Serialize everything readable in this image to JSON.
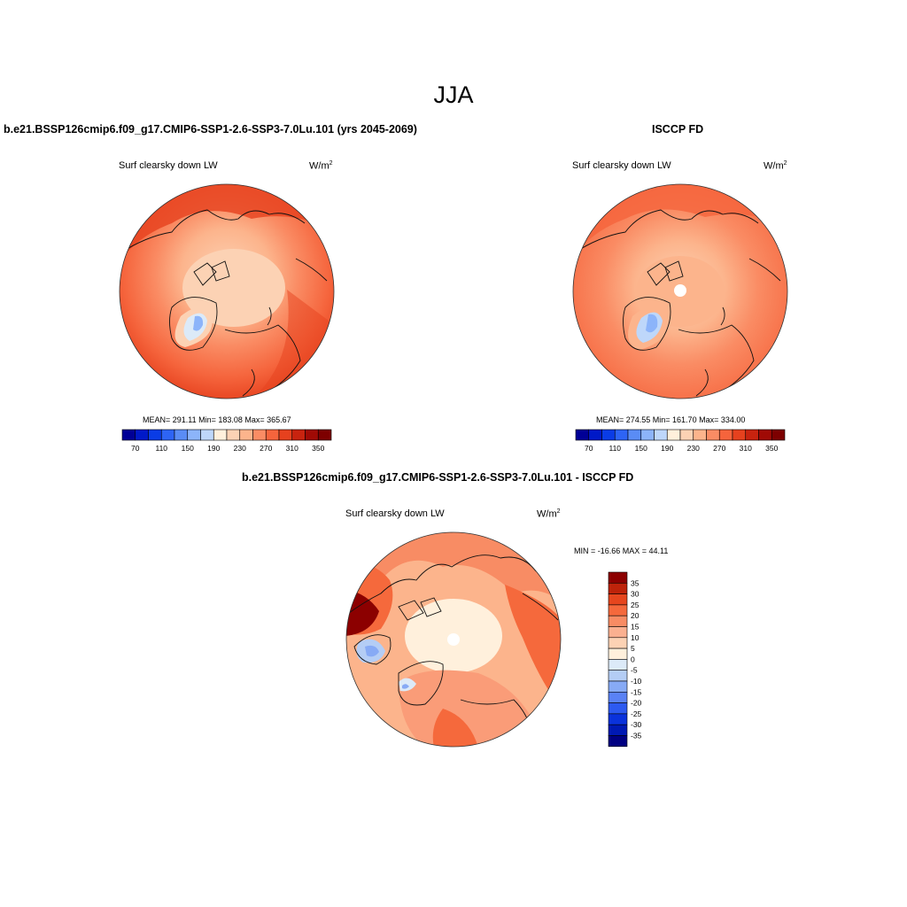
{
  "title": "JJA",
  "panels": [
    {
      "id": "model",
      "case_title": "b.e21.BSSP126cmip6.f09_g17.CMIP6-SSP1-2.6-SSP3-7.0Lu.101 (yrs 2045-2069)",
      "variable": "Surf clearsky down LW",
      "units": "W/m",
      "units_sup": "2",
      "stats": "MEAN= 291.11  Min= 183.08  Max= 365.67"
    },
    {
      "id": "obs",
      "case_title": "ISCCP FD",
      "variable": "Surf clearsky down LW",
      "units": "W/m",
      "units_sup": "2",
      "stats": "MEAN= 274.55  Min= 161.70  Max= 334.00"
    },
    {
      "id": "diff",
      "case_title": "b.e21.BSSP126cmip6.f09_g17.CMIP6-SSP1-2.6-SSP3-7.0Lu.101 - ISCCP FD",
      "variable": "Surf clearsky down LW",
      "units": "W/m",
      "units_sup": "2",
      "stats": "MIN = -16.66 MAX =  44.11"
    }
  ],
  "abs_colorbar": {
    "colors": [
      "#000096",
      "#0019c8",
      "#0a3ce6",
      "#2d64f5",
      "#5a8cf5",
      "#8cb4fa",
      "#bed7fa",
      "#fff0dc",
      "#fcd2b4",
      "#fcb48c",
      "#fa8c64",
      "#f5643c",
      "#e6411e",
      "#c8230f",
      "#a00a05",
      "#7d0000"
    ],
    "labels": [
      "70",
      "110",
      "150",
      "190",
      "230",
      "270",
      "310",
      "350"
    ]
  },
  "diff_colorbar": {
    "colors": [
      "#000082",
      "#0019b4",
      "#0a32dc",
      "#2d5af0",
      "#5a82f5",
      "#87aaf5",
      "#b4cdf5",
      "#dceaf8",
      "#fff0dc",
      "#fcd2b4",
      "#fab090",
      "#f88c64",
      "#f5693c",
      "#e6461e",
      "#be230a",
      "#8c0000"
    ],
    "labels": [
      "35",
      "30",
      "25",
      "20",
      "15",
      "10",
      "5",
      "0",
      "-5",
      "-10",
      "-15",
      "-20",
      "-25",
      "-30",
      "-35"
    ]
  }
}
